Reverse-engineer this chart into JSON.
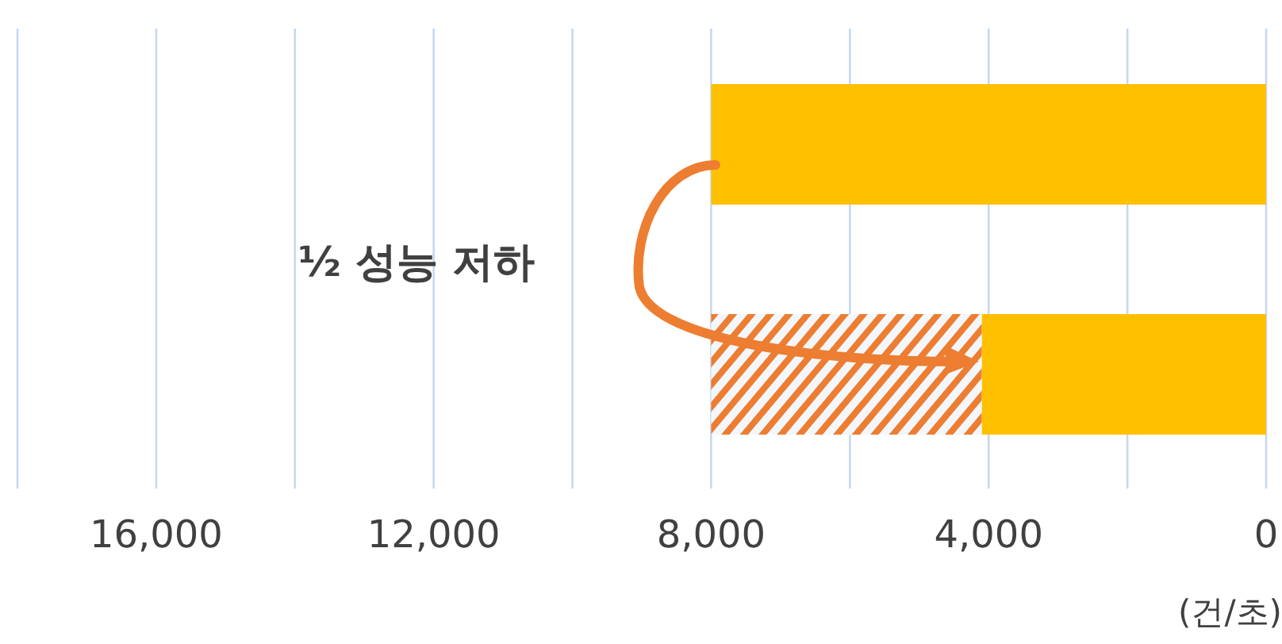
{
  "chart_data": {
    "type": "bar",
    "orientation": "horizontal",
    "stacked": true,
    "categories": [
      null,
      null
    ],
    "series": [
      {
        "color": "#ffc000",
        "values": [
          8000,
          4100
        ]
      },
      {
        "color": "#ed7d31",
        "values": [
          null,
          3900
        ]
      }
    ],
    "xlim": [
      18000,
      0
    ],
    "xticks": [
      0,
      {
        "value": 2000,
        "label": null
      },
      "4,000",
      {
        "value": 6000,
        "label": null
      },
      {
        "value": 8000,
        "label": "8,000"
      },
      {
        "value": 10000,
        "label": null
      },
      {
        "value": 12000,
        "label": "12,000"
      },
      {
        "value": 14000,
        "label": null
      },
      {
        "value": 16000,
        "label": "16,000"
      },
      {
        "value": 18000,
        "label": null
      }
    ],
    "xlabel": "(건/초)",
    "annotations": [
      "½ 성능 저하"
    ],
    "grid": "x",
    "tick_labels": "x"
  }
}
